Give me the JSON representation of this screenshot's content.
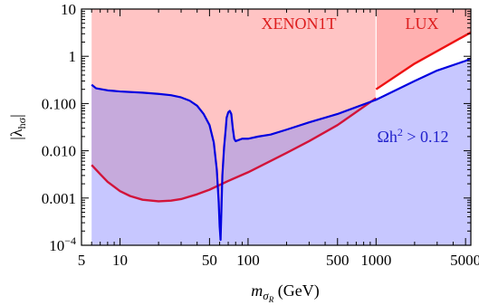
{
  "chart_data": {
    "type": "line",
    "xscale": "log",
    "yscale": "log",
    "xlim": [
      5,
      5500
    ],
    "ylim": [
      0.0001,
      10
    ],
    "xticks": [
      {
        "value": 5,
        "label": "5"
      },
      {
        "value": 10,
        "label": "10"
      },
      {
        "value": 50,
        "label": "50"
      },
      {
        "value": 100,
        "label": "100"
      },
      {
        "value": 500,
        "label": "500"
      },
      {
        "value": 1000,
        "label": "1000"
      },
      {
        "value": 5000,
        "label": "5000"
      }
    ],
    "yticks": [
      {
        "value": 0.0001,
        "label_base": "10",
        "label_exp": "−4"
      },
      {
        "value": 0.001,
        "label_base": "0.001",
        "label_exp": ""
      },
      {
        "value": 0.01,
        "label_base": "0.010",
        "label_exp": ""
      },
      {
        "value": 0.1,
        "label_base": "0.100",
        "label_exp": ""
      },
      {
        "value": 1,
        "label_base": "1",
        "label_exp": ""
      },
      {
        "value": 10,
        "label_base": "10",
        "label_exp": ""
      }
    ],
    "xlabel": {
      "main": "m",
      "sub1": "σ",
      "sub2": "R",
      "unit": " (GeV)"
    },
    "ylabel": {
      "pre": "|λ",
      "sub": "hσ",
      "post": "|"
    },
    "annotations": [
      {
        "id": "xenon",
        "text": "XENON1T",
        "color": "#dd1e1e"
      },
      {
        "id": "lux",
        "text": "LUX",
        "color": "#dd1e1e"
      },
      {
        "id": "relic",
        "text": "Ωh",
        "sup": "2",
        "tail": " > 0.12",
        "color": "#2222cc"
      }
    ],
    "regions": [
      {
        "name": "XENON1T excluded",
        "color": "#ffc4c4",
        "x": [
          6,
          1000
        ],
        "y_upper": 10,
        "y_lower_curve": "blue_envelope"
      },
      {
        "name": "LUX excluded",
        "color": "#ffb0b0",
        "x": [
          1000,
          5500
        ],
        "y_upper": 10
      }
    ],
    "series": [
      {
        "color": "#0000e0",
        "x": [
          6,
          6.5,
          8,
          10,
          15,
          20,
          25,
          30,
          35,
          40,
          45,
          50,
          54,
          57,
          59,
          60,
          61,
          62,
          63,
          65,
          67,
          68,
          70,
          72,
          74,
          76,
          78,
          80,
          85,
          90,
          100,
          120,
          150,
          200,
          300,
          500,
          1000,
          2000,
          3000,
          5000,
          5500
        ],
        "y": [
          0.25,
          0.21,
          0.19,
          0.18,
          0.17,
          0.16,
          0.15,
          0.135,
          0.115,
          0.09,
          0.06,
          0.035,
          0.015,
          0.004,
          0.0008,
          0.00025,
          0.00013,
          0.0006,
          0.003,
          0.012,
          0.03,
          0.05,
          0.065,
          0.07,
          0.06,
          0.03,
          0.018,
          0.016,
          0.017,
          0.018,
          0.018,
          0.02,
          0.022,
          0.028,
          0.04,
          0.06,
          0.12,
          0.3,
          0.5,
          0.8,
          0.9
        ]
      },
      {
        "color": "#d2143a",
        "x": [
          6,
          7,
          8,
          10,
          12,
          15,
          20,
          25,
          30,
          40,
          50,
          70,
          100,
          200,
          300,
          500,
          1000
        ],
        "y": [
          0.005,
          0.0032,
          0.0022,
          0.0014,
          0.0011,
          0.00092,
          0.00085,
          0.00088,
          0.00095,
          0.0012,
          0.0015,
          0.0023,
          0.0035,
          0.009,
          0.016,
          0.035,
          0.13
        ]
      },
      {
        "color": "#ee1111",
        "x": [
          1000,
          2000,
          5500
        ],
        "y": [
          0.2,
          0.7,
          3.2
        ]
      }
    ]
  }
}
